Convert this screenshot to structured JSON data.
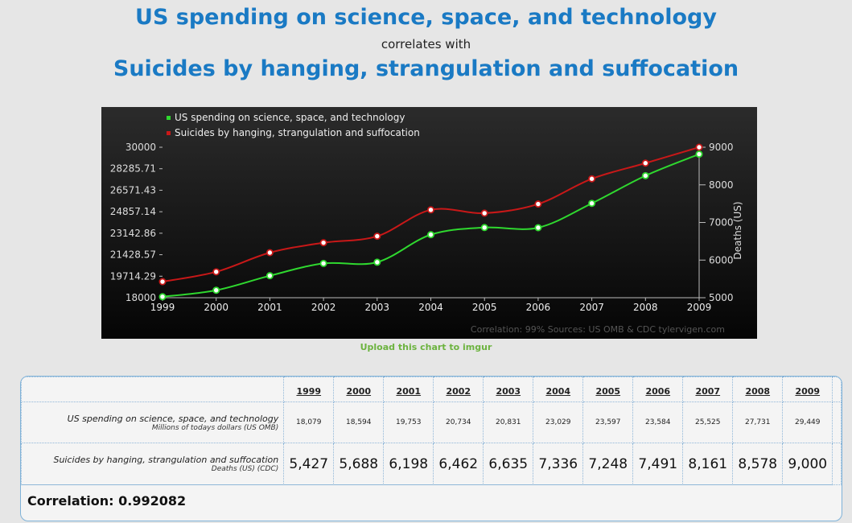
{
  "header": {
    "title_top": "US spending on science, space, and technology",
    "connector": "correlates with",
    "title_bottom": "Suicides by hanging, strangulation and suffocation"
  },
  "upload_link": "Upload this chart to imgur",
  "table": {
    "series1_label": "US spending on science, space, and technology",
    "series1_sublabel": "Millions of todays dollars (US OMB)",
    "series2_label": "Suicides by hanging, strangulation and suffocation",
    "series2_sublabel": "Deaths (US) (CDC)",
    "series1_values": [
      "18,079",
      "18,594",
      "19,753",
      "20,734",
      "20,831",
      "23,029",
      "23,597",
      "23,584",
      "25,525",
      "27,731",
      "29,449"
    ],
    "series2_values": [
      "5,427",
      "5,688",
      "6,198",
      "6,462",
      "6,635",
      "7,336",
      "7,248",
      "7,491",
      "8,161",
      "8,578",
      "9,000"
    ]
  },
  "correlation_text": "Correlation: 0.992082",
  "chart_data": {
    "type": "line",
    "x": [
      "1999",
      "2000",
      "2001",
      "2002",
      "2003",
      "2004",
      "2005",
      "2006",
      "2007",
      "2008",
      "2009"
    ],
    "series": [
      {
        "name": "US spending on science, space, and technology",
        "color": "#2fd82f",
        "axis": "left",
        "values": [
          18079,
          18594,
          19753,
          20734,
          20831,
          23029,
          23597,
          23584,
          25525,
          27731,
          29449
        ]
      },
      {
        "name": "Suicides by hanging, strangulation and suffocation",
        "color": "#c81818",
        "axis": "right",
        "values": [
          5427,
          5688,
          6198,
          6462,
          6635,
          7336,
          7248,
          7491,
          8161,
          8578,
          9000
        ]
      }
    ],
    "y_left": {
      "ticks": [
        "18000",
        "19714.29",
        "21428.57",
        "23142.86",
        "24857.14",
        "26571.43",
        "28285.71",
        "30000"
      ],
      "range": [
        18000,
        30000
      ]
    },
    "y_right": {
      "label": "Deaths (US)",
      "ticks": [
        "5000",
        "6000",
        "7000",
        "8000",
        "9000"
      ],
      "range": [
        5000,
        9000
      ]
    },
    "footer": {
      "correlation": "Correlation: 99%",
      "sources": "Sources: US OMB & CDC",
      "site": "tylervigen.com"
    },
    "legend_position": "top-left"
  }
}
